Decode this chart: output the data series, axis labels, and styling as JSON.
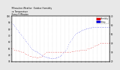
{
  "title": "Milwaukee Weather  Outdoor Humidity\nvs Temperature\nEvery 5 Minutes",
  "title_fontsize": 2.2,
  "background_color": "#e8e8e8",
  "plot_bg": "#ffffff",
  "grid_color": "#aaaaaa",
  "scatter_humidity_color": "#0000dd",
  "scatter_temp_color": "#dd0000",
  "legend_labels": [
    "Humidity",
    "Temp"
  ],
  "legend_colors": [
    "#dd0000",
    "#0000dd"
  ],
  "x_humidity": [
    0,
    1,
    2,
    3,
    4,
    5,
    6,
    7,
    8,
    9,
    10,
    11,
    12,
    13,
    14,
    15,
    16,
    17,
    18,
    19,
    20,
    21,
    22,
    23,
    24,
    25,
    26,
    27,
    28,
    29,
    30,
    31,
    32,
    33,
    34,
    35,
    36,
    37,
    38,
    39,
    40,
    41,
    42,
    43,
    44,
    45,
    46,
    47,
    48,
    49,
    50,
    51,
    52,
    53,
    54,
    55,
    56,
    57,
    58,
    59,
    60,
    61,
    62,
    63,
    64,
    65,
    66,
    67,
    68,
    69,
    70,
    71,
    72,
    73,
    74,
    75,
    76,
    77,
    78,
    79,
    80,
    81,
    82,
    83,
    84,
    85,
    86,
    87,
    88,
    89,
    90,
    91,
    92,
    93,
    94,
    95,
    96,
    97,
    98,
    99,
    100
  ],
  "y_humidity": [
    88,
    87,
    86,
    84,
    82,
    80,
    78,
    76,
    74,
    72,
    70,
    68,
    66,
    64,
    62,
    60,
    58,
    56,
    54,
    52,
    50,
    49,
    48,
    47,
    46,
    45,
    44,
    43,
    42,
    41,
    40,
    39,
    38,
    38,
    37,
    37,
    36,
    36,
    36,
    35,
    35,
    35,
    35,
    35,
    35,
    36,
    36,
    37,
    37,
    38,
    39,
    40,
    42,
    44,
    46,
    48,
    50,
    53,
    56,
    59,
    62,
    64,
    66,
    68,
    70,
    72,
    73,
    74,
    75,
    76,
    77,
    78,
    79,
    79,
    80,
    80,
    81,
    81,
    81,
    82,
    82,
    82,
    83,
    83,
    83,
    83,
    83,
    83,
    83,
    83,
    83,
    83,
    83,
    83,
    83,
    83,
    83,
    83,
    83,
    83,
    83
  ],
  "x_temp": [
    0,
    1,
    2,
    3,
    4,
    5,
    6,
    7,
    8,
    9,
    10,
    11,
    12,
    13,
    14,
    15,
    16,
    17,
    18,
    19,
    20,
    21,
    22,
    23,
    24,
    25,
    26,
    27,
    28,
    29,
    30,
    31,
    32,
    33,
    34,
    35,
    36,
    37,
    38,
    39,
    40,
    41,
    42,
    43,
    44,
    45,
    46,
    47,
    48,
    49,
    50,
    51,
    52,
    53,
    54,
    55,
    56,
    57,
    58,
    59,
    60,
    61,
    62,
    63,
    64,
    65,
    66,
    67,
    68,
    69,
    70,
    71,
    72,
    73,
    74,
    75,
    76,
    77,
    78,
    79,
    80,
    81,
    82,
    83,
    84,
    85,
    86,
    87,
    88,
    89,
    90,
    91,
    92,
    93,
    94,
    95,
    96,
    97,
    98,
    99,
    100
  ],
  "y_temp": [
    34,
    34,
    33,
    33,
    33,
    32,
    32,
    32,
    31,
    31,
    30,
    30,
    30,
    29,
    28,
    28,
    27,
    27,
    26,
    26,
    26,
    25,
    25,
    25,
    25,
    24,
    24,
    24,
    25,
    25,
    25,
    26,
    27,
    28,
    29,
    30,
    30,
    30,
    30,
    30,
    30,
    30,
    30,
    30,
    30,
    30,
    30,
    30,
    30,
    30,
    30,
    30,
    30,
    30,
    30,
    30,
    30,
    30,
    30,
    30,
    30,
    31,
    31,
    31,
    31,
    32,
    32,
    32,
    32,
    32,
    33,
    33,
    33,
    33,
    33,
    33,
    33,
    34,
    34,
    34,
    35,
    35,
    36,
    36,
    37,
    37,
    38,
    38,
    39,
    39,
    40,
    40,
    40,
    40,
    40,
    40,
    40,
    40,
    40,
    40,
    40
  ],
  "ylim_left": [
    30,
    100
  ],
  "ylim_right": [
    20,
    70
  ],
  "xlim": [
    0,
    100
  ],
  "yticks_left": [
    30,
    40,
    50,
    60,
    70,
    80,
    90,
    100
  ],
  "yticks_right": [
    20,
    30,
    40,
    50,
    60,
    70
  ],
  "xtick_count": 25
}
